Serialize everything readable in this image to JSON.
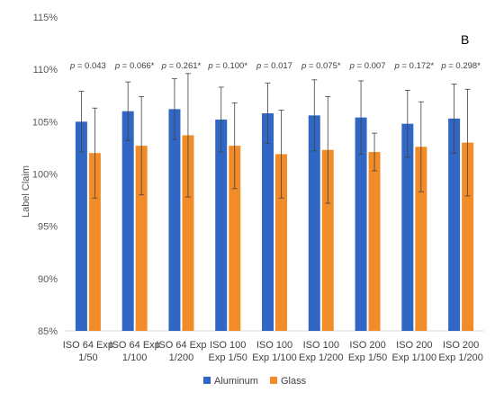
{
  "chart_data": {
    "type": "bar",
    "panel_label": "B",
    "ylabel": "Label Claim",
    "ylim": [
      85,
      115
    ],
    "yticks": [
      85,
      90,
      95,
      100,
      105,
      110,
      115
    ],
    "ytick_labels": [
      "85%",
      "90%",
      "95%",
      "100%",
      "105%",
      "110%",
      "115%"
    ],
    "grid": false,
    "legend_position": "bottom",
    "categories": [
      [
        "ISO 64 Exp",
        "1/50"
      ],
      [
        "ISO 64 Exp",
        "1/100"
      ],
      [
        "ISO 64 Exp",
        "1/200"
      ],
      [
        "ISO 100",
        "Exp 1/50"
      ],
      [
        "ISO 100",
        "Exp 1/100"
      ],
      [
        "ISO 100",
        "Exp 1/200"
      ],
      [
        "ISO 200",
        "Exp 1/50"
      ],
      [
        "ISO 200",
        "Exp 1/100"
      ],
      [
        "ISO 200",
        "Exp 1/200"
      ]
    ],
    "p_values": [
      "p = 0.043",
      "p = 0.066*",
      "p = 0.261*",
      "p = 0.100*",
      "p = 0.017",
      "p = 0.075*",
      "p = 0.007",
      "p = 0.172*",
      "p = 0.298*"
    ],
    "series": [
      {
        "name": "Aluminum",
        "color": "#3067C4",
        "values": [
          105.0,
          106.0,
          106.2,
          105.2,
          105.8,
          105.6,
          105.4,
          104.8,
          105.3
        ],
        "errors": [
          2.9,
          2.8,
          2.9,
          3.1,
          2.9,
          3.4,
          3.5,
          3.2,
          3.3
        ]
      },
      {
        "name": "Glass",
        "color": "#F28C28",
        "values": [
          102.0,
          102.7,
          103.7,
          102.7,
          101.9,
          102.3,
          102.1,
          102.6,
          103.0
        ],
        "errors": [
          4.3,
          4.7,
          5.9,
          4.1,
          4.2,
          5.1,
          1.8,
          4.3,
          5.1
        ]
      }
    ]
  }
}
